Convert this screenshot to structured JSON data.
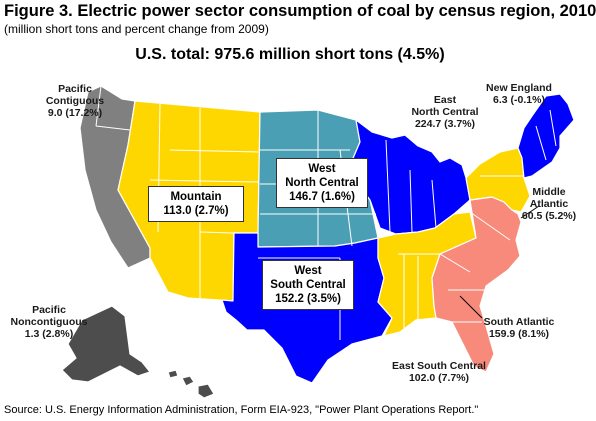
{
  "title": "Figure 3. Electric power sector consumption of coal by census region, 2010",
  "subtitle": "(million short tons and percent change from 2009)",
  "total_label": "U.S. total: 975.6 million short tons (4.5%)",
  "source": "Source: U.S. Energy Information Administration, Form EIA-923, \"Power Plant Operations Report.\"",
  "colors": {
    "pacific_contiguous": "#808080",
    "pacific_noncontiguous": "#4d4d4d",
    "mountain": "#ffd700",
    "west_north_central": "#4a9fb5",
    "west_south_central": "#0000ff",
    "east_north_central": "#0000ff",
    "east_south_central": "#ffd700",
    "south_atlantic": "#f78a7a",
    "middle_atlantic": "#ffd700",
    "new_england": "#0000ff",
    "state_border": "#ffffff"
  },
  "regions": [
    {
      "key": "pacific_contiguous",
      "name": "Pacific Contiguous",
      "name_lines": [
        "Pacific",
        "Contiguous"
      ],
      "value": "9.0 (17.2%)"
    },
    {
      "key": "pacific_noncontiguous",
      "name": "Pacific Noncontiguous",
      "name_lines": [
        "Pacific",
        "Noncontiguous"
      ],
      "value": "1.3 (2.8%)"
    },
    {
      "key": "mountain",
      "name": "Mountain",
      "name_lines": [
        "Mountain"
      ],
      "value": "113.0 (2.7%)"
    },
    {
      "key": "west_north_central",
      "name": "West North Central",
      "name_lines": [
        "West",
        "North Central"
      ],
      "value": "146.7 (1.6%)"
    },
    {
      "key": "west_south_central",
      "name": "West South Central",
      "name_lines": [
        "West",
        "South Central"
      ],
      "value": "152.2 (3.5%)"
    },
    {
      "key": "east_north_central",
      "name": "East North Central",
      "name_lines": [
        "East",
        "North Central"
      ],
      "value": "224.7 (3.7%)"
    },
    {
      "key": "east_south_central",
      "name": "East South Central",
      "name_lines": [
        "East South Central"
      ],
      "value": "102.0 (7.7%)"
    },
    {
      "key": "south_atlantic",
      "name": "South Atlantic",
      "name_lines": [
        "South Atlantic"
      ],
      "value": "159.9 (8.1%)"
    },
    {
      "key": "middle_atlantic",
      "name": "Middle Atlantic",
      "name_lines": [
        "Middle",
        "Atlantic"
      ],
      "value": "60.5 (5.2%)"
    },
    {
      "key": "new_england",
      "name": "New England",
      "name_lines": [
        "New England"
      ],
      "value": "6.3 (-0.1%)"
    }
  ]
}
